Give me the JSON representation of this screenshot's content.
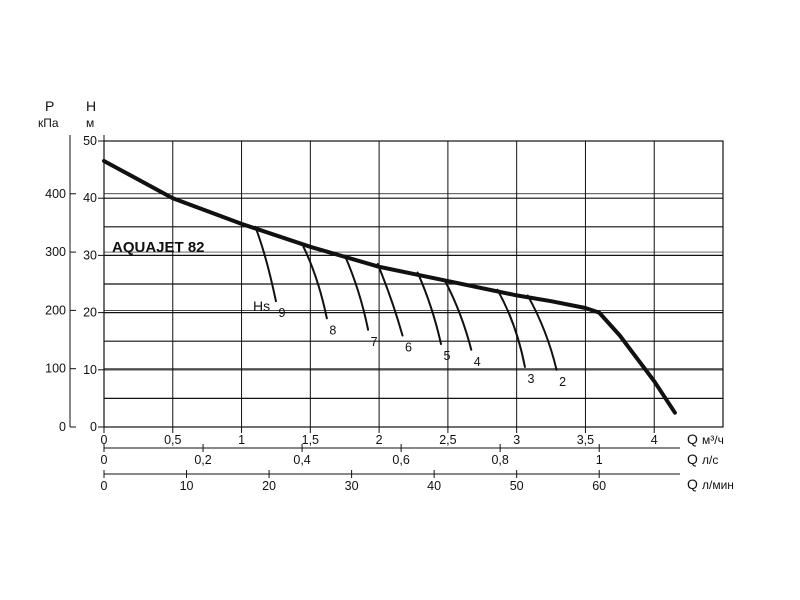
{
  "chart_data": {
    "type": "line",
    "title": "AQUAJET 82",
    "pressure_axis": {
      "label": "P",
      "unit": "кПа",
      "ticks": [
        "0",
        "100",
        "200",
        "300",
        "400"
      ],
      "values": [
        0,
        100,
        200,
        300,
        400
      ]
    },
    "head_axis": {
      "label": "H",
      "unit": "м",
      "ticks": [
        "0",
        "10",
        "20",
        "30",
        "40",
        "50"
      ],
      "values": [
        0,
        10,
        20,
        30,
        40,
        50
      ],
      "range": [
        0,
        50
      ]
    },
    "flow_axes": [
      {
        "label": "Q",
        "unit": "м³/ч",
        "ticks": [
          "0",
          "0,5",
          "1",
          "1,5",
          "2",
          "2,5",
          "3",
          "3,5",
          "4"
        ],
        "values": [
          0,
          0.5,
          1,
          1.5,
          2,
          2.5,
          3,
          3.5,
          4
        ],
        "range": [
          0,
          4.5
        ]
      },
      {
        "label": "Q",
        "unit": "л/с",
        "ticks": [
          "0",
          "0,2",
          "0,4",
          "0,6",
          "0,8",
          "1"
        ],
        "values": [
          0,
          0.2,
          0.4,
          0.6,
          0.8,
          1.0
        ]
      },
      {
        "label": "Q",
        "unit": "л/мин",
        "ticks": [
          "0",
          "10",
          "20",
          "30",
          "40",
          "50",
          "60"
        ],
        "values": [
          0,
          10,
          20,
          30,
          40,
          50,
          60
        ]
      }
    ],
    "main_curve": {
      "x": [
        0,
        0.5,
        1,
        1.5,
        2,
        2.5,
        3,
        3.25,
        3.5,
        3.6,
        3.75,
        4.0,
        4.15
      ],
      "y": [
        46.5,
        40,
        35.5,
        31.5,
        28,
        25.5,
        23,
        22,
        20.8,
        20,
        16,
        8,
        2.5
      ]
    },
    "suction_curves": [
      {
        "label": "9",
        "x": [
          1.1,
          1.18,
          1.25
        ],
        "y": [
          35,
          30,
          22
        ]
      },
      {
        "label": "8",
        "x": [
          1.45,
          1.56,
          1.62
        ],
        "y": [
          31.5,
          26,
          19
        ]
      },
      {
        "label": "7",
        "x": [
          1.75,
          1.86,
          1.92
        ],
        "y": [
          30,
          24,
          17
        ]
      },
      {
        "label": "6",
        "x": [
          1.99,
          2.1,
          2.17
        ],
        "y": [
          28.5,
          22,
          16
        ]
      },
      {
        "label": "5",
        "x": [
          2.28,
          2.39,
          2.45
        ],
        "y": [
          27,
          21,
          14.5
        ]
      },
      {
        "label": "4",
        "x": [
          2.48,
          2.6,
          2.67
        ],
        "y": [
          25.5,
          20,
          13.5
        ]
      },
      {
        "label": "3",
        "x": [
          2.86,
          3.0,
          3.06
        ],
        "y": [
          24,
          18,
          10.5
        ]
      },
      {
        "label": "2",
        "x": [
          3.08,
          3.22,
          3.29
        ],
        "y": [
          23,
          17,
          10
        ]
      }
    ],
    "suction_label": "Hs",
    "grid": true
  }
}
